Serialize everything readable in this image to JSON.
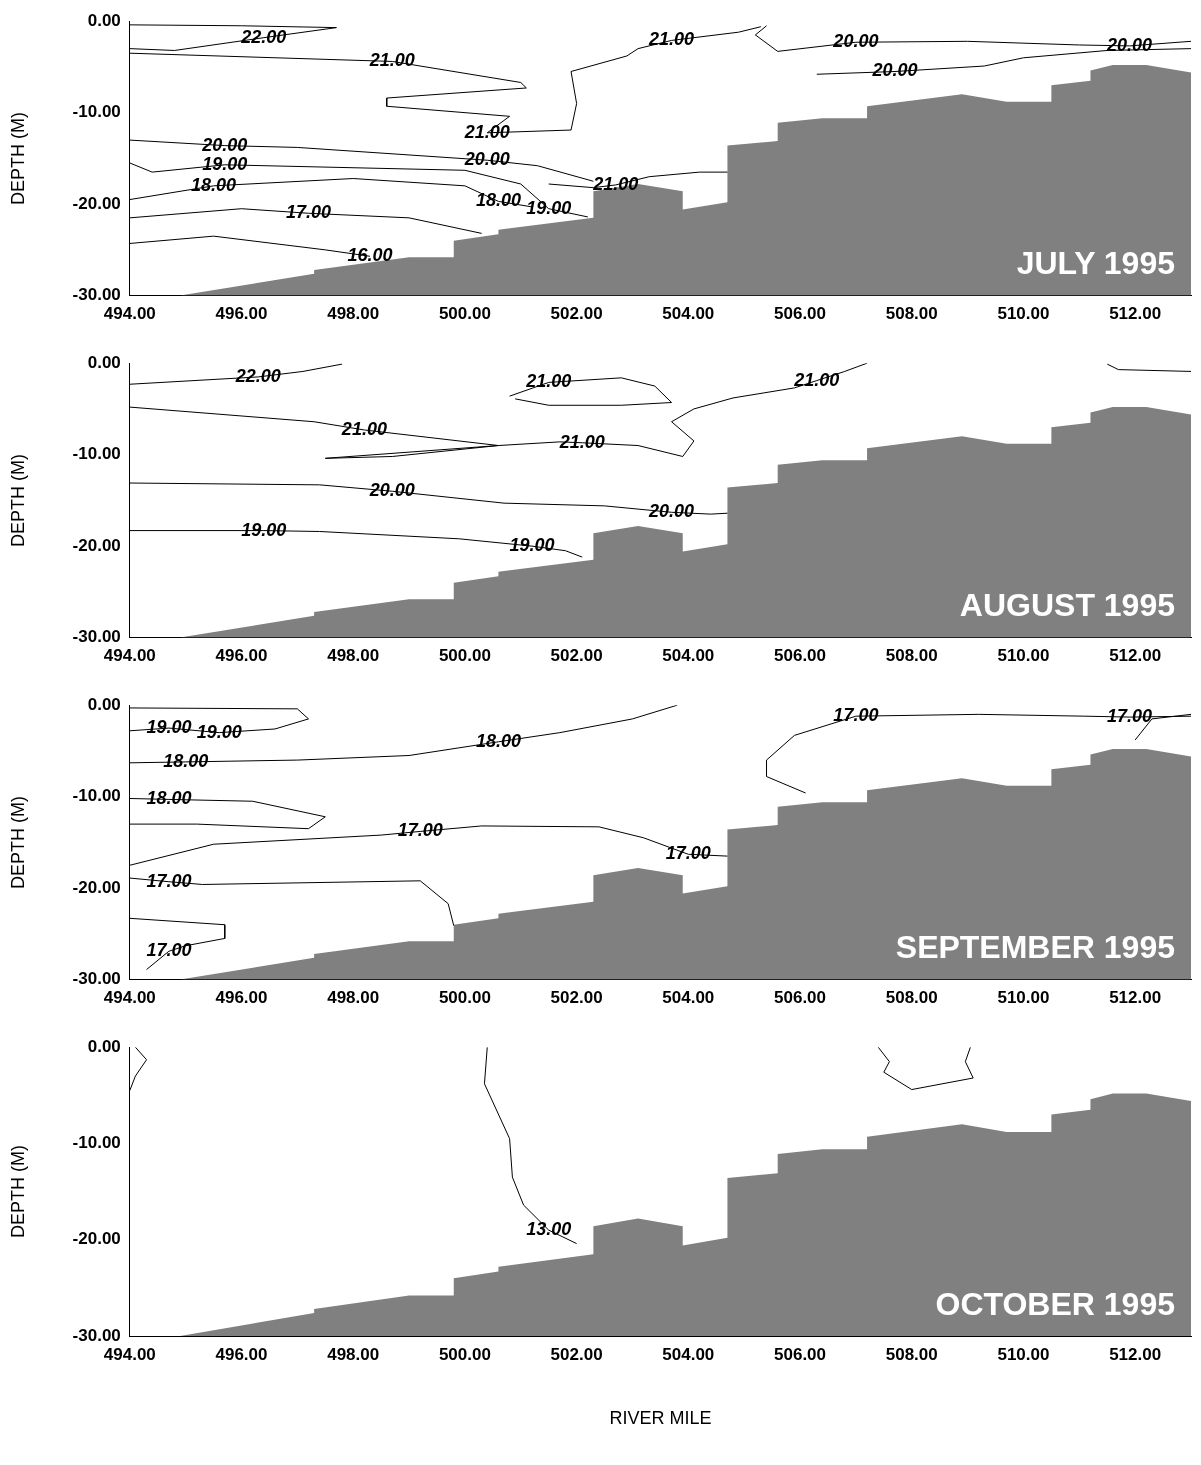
{
  "chart_data": [
    {
      "type": "line",
      "ylabel": "DEPTH (M)",
      "xlim": [
        494,
        513
      ],
      "ylim": [
        -30,
        0
      ],
      "xticks": [
        {
          "value": 494,
          "label": "494.00"
        },
        {
          "value": 496,
          "label": "496.00"
        },
        {
          "value": 498,
          "label": "498.00"
        },
        {
          "value": 500,
          "label": "500.00"
        },
        {
          "value": 502,
          "label": "502.00"
        },
        {
          "value": 504,
          "label": "504.00"
        },
        {
          "value": 506,
          "label": "506.00"
        },
        {
          "value": 508,
          "label": "508.00"
        },
        {
          "value": 510,
          "label": "510.00"
        },
        {
          "value": 512,
          "label": "512.00"
        }
      ],
      "yticks": [
        {
          "value": -30,
          "label": "-30.00"
        },
        {
          "value": -20,
          "label": "-20.00"
        },
        {
          "value": -10,
          "label": "-10.00"
        },
        {
          "value": 0,
          "label": "0.00"
        }
      ],
      "series": [
        {
          "type": "line",
          "color": "#000000",
          "x": [
            494,
            496,
            497.7,
            496.4,
            494.8,
            494
          ],
          "values": [
            -0.4,
            -0.5,
            -0.7,
            -1.8,
            -3.2,
            -3.0
          ]
        },
        {
          "type": "line",
          "color": "#000000",
          "x": [
            494,
            498.7,
            501,
            501.1,
            498.6,
            498.6,
            500.8,
            500.4,
            501.9,
            502,
            501.9,
            502.9,
            503.1,
            503.7,
            504.9,
            505.3
          ],
          "values": [
            -3.5,
            -4.4,
            -6.7,
            -7.3,
            -8.4,
            -9.3,
            -10.4,
            -12.2,
            -11.9,
            -9,
            -5.5,
            -3.8,
            -3.0,
            -2.1,
            -1.2,
            -0.6
          ]
        },
        {
          "type": "line",
          "color": "#000000",
          "x": [
            505.4,
            505.2,
            505.6,
            507,
            509,
            511,
            511.9,
            513
          ],
          "values": [
            -0.5,
            -1.5,
            -3.3,
            -2.3,
            -2.2,
            -2.6,
            -2.7,
            -2.2
          ]
        },
        {
          "type": "line",
          "color": "#000000",
          "x": [
            506.3,
            507.7,
            509.3,
            510,
            511.5,
            513
          ],
          "values": [
            -5.8,
            -5.5,
            -4.9,
            -4.0,
            -3.2,
            -3.0
          ]
        },
        {
          "type": "line",
          "color": "#000000",
          "x": [
            494,
            495.7,
            497,
            500.4,
            501.3,
            502.3
          ],
          "values": [
            -13,
            -13.6,
            -13.8,
            -15.2,
            -15.8,
            -17.5
          ]
        },
        {
          "type": "line",
          "color": "#000000",
          "x": [
            494,
            494.4,
            495.7,
            500,
            501,
            501.5,
            502.2
          ],
          "values": [
            -15.5,
            -16.5,
            -15.7,
            -16.3,
            -17.8,
            -20.5,
            -21.4
          ]
        },
        {
          "type": "line",
          "color": "#000000",
          "x": [
            494,
            495.5,
            498,
            500,
            500.6,
            501.2
          ],
          "values": [
            -19.5,
            -18,
            -17.2,
            -18.0,
            -19.7,
            -20.3
          ]
        },
        {
          "type": "line",
          "color": "#000000",
          "x": [
            494,
            496,
            497.2,
            499,
            500.3
          ],
          "values": [
            -21.5,
            -20.5,
            -21.0,
            -21.5,
            -23.2
          ]
        },
        {
          "type": "line",
          "color": "#000000",
          "x": [
            494,
            495.5,
            497.5,
            498.3
          ],
          "values": [
            -24.3,
            -23.5,
            -25,
            -25.7
          ]
        },
        {
          "type": "line",
          "color": "#000000",
          "x": [
            501.5,
            502.3,
            502.7,
            503.3,
            504.2,
            504.7
          ],
          "values": [
            -17.8,
            -18.2,
            -17.9,
            -17,
            -16.5,
            -16.5
          ]
        },
        {
          "type": "area",
          "color": "#808080",
          "x": [
            494.9,
            497.3,
            497.3,
            499,
            499.8,
            499.8,
            500.6,
            500.6,
            502.3,
            502.3,
            503.1,
            503.9,
            503.9,
            504.7,
            504.7,
            505.6,
            505.6,
            506.4,
            507.2,
            507.2,
            508.9,
            509.7,
            510.5,
            510.5,
            511.2,
            511.2,
            511.6,
            512.2,
            513,
            513
          ],
          "values": [
            -30,
            -27.6,
            -27.2,
            -25.8,
            -25.8,
            -24,
            -23.3,
            -22.8,
            -21.5,
            -18.6,
            -17.8,
            -18.6,
            -20.6,
            -19.8,
            -13.6,
            -13.1,
            -11.1,
            -10.6,
            -10.6,
            -9.3,
            -8.0,
            -8.8,
            -8.8,
            -7.0,
            -6.5,
            -5.4,
            -4.8,
            -4.8,
            -5.6,
            -30
          ]
        }
      ],
      "annotations": [
        "JULY 1995",
        {
          "text": "22.00",
          "x": 496.4,
          "y": -1.8
        },
        {
          "text": "21.00",
          "x": 498.7,
          "y": -4.4
        },
        {
          "text": "21.00",
          "x": 500.4,
          "y": -12.2
        },
        {
          "text": "21.00",
          "x": 503.7,
          "y": -2.1
        },
        {
          "text": "20.00",
          "x": 507,
          "y": -2.3
        },
        {
          "text": "20.00",
          "x": 507.7,
          "y": -5.5
        },
        {
          "text": "20.00",
          "x": 511.9,
          "y": -2.7
        },
        {
          "text": "20.00",
          "x": 495.7,
          "y": -13.6
        },
        {
          "text": "19.00",
          "x": 495.7,
          "y": -15.7
        },
        {
          "text": "18.00",
          "x": 495.5,
          "y": -18
        },
        {
          "text": "17.00",
          "x": 497.2,
          "y": -21.0
        },
        {
          "text": "16.00",
          "x": 498.3,
          "y": -25.7
        },
        {
          "text": "20.00",
          "x": 500.4,
          "y": -15.2
        },
        {
          "text": "18.00",
          "x": 500.6,
          "y": -19.7
        },
        {
          "text": "19.00",
          "x": 501.5,
          "y": -20.5
        },
        {
          "text": "21.00",
          "x": 502.7,
          "y": -17.9
        }
      ]
    },
    {
      "type": "line",
      "ylabel": "DEPTH (M)",
      "xlim": [
        494,
        513
      ],
      "ylim": [
        -30,
        0
      ],
      "xticks": [
        {
          "value": 494,
          "label": "494.00"
        },
        {
          "value": 496,
          "label": "496.00"
        },
        {
          "value": 498,
          "label": "498.00"
        },
        {
          "value": 500,
          "label": "500.00"
        },
        {
          "value": 502,
          "label": "502.00"
        },
        {
          "value": 504,
          "label": "504.00"
        },
        {
          "value": 506,
          "label": "506.00"
        },
        {
          "value": 508,
          "label": "508.00"
        },
        {
          "value": 510,
          "label": "510.00"
        },
        {
          "value": 512,
          "label": "512.00"
        }
      ],
      "yticks": [
        {
          "value": -30,
          "label": "-30.00"
        },
        {
          "value": -20,
          "label": "-20.00"
        },
        {
          "value": -10,
          "label": "-10.00"
        },
        {
          "value": 0,
          "label": "0.00"
        }
      ],
      "series": [
        {
          "type": "line",
          "color": "#000000",
          "x": [
            494,
            496.3,
            497.1,
            497.8
          ],
          "values": [
            -2.3,
            -1.5,
            -0.9,
            -0.1
          ]
        },
        {
          "type": "line",
          "color": "#000000",
          "x": [
            500.8,
            501.5,
            502.8,
            503.4,
            503.7,
            502.8,
            501.5,
            500.9
          ],
          "values": [
            -3.6,
            -2.1,
            -1.6,
            -2.5,
            -4.3,
            -4.6,
            -4.6,
            -3.9
          ]
        },
        {
          "type": "line",
          "color": "#000000",
          "x": [
            494,
            497.3,
            498.2,
            500.6,
            498.7,
            497.5,
            500.6,
            501.7,
            502.1,
            503.1,
            503.9,
            504.1,
            503.7,
            504.1,
            504.8,
            505.9,
            506.3,
            506.8,
            507.2
          ],
          "values": [
            -4.8,
            -6.4,
            -7.3,
            -9.0,
            -10.2,
            -10.4,
            -9.0,
            -8.6,
            -8.7,
            -9.0,
            -10.2,
            -8.5,
            -6.4,
            -5.0,
            -3.8,
            -2.7,
            -1.9,
            -0.9,
            0
          ]
        },
        {
          "type": "line",
          "color": "#000000",
          "x": [
            511.5,
            511.7,
            513
          ],
          "values": [
            -0.1,
            -0.7,
            -0.9
          ]
        },
        {
          "type": "line",
          "color": "#000000",
          "x": [
            494,
            497.4,
            498.7,
            500.7,
            502.5,
            503.7,
            504.4,
            504.7
          ],
          "values": [
            -13.1,
            -13.3,
            -14.0,
            -15.3,
            -15.6,
            -16.3,
            -16.5,
            -16.4
          ]
        },
        {
          "type": "line",
          "color": "#000000",
          "x": [
            494,
            496.4,
            497.4,
            499.9,
            501.2,
            501.8,
            502.1
          ],
          "values": [
            -18.3,
            -18.3,
            -18.4,
            -19.2,
            -20.0,
            -20.5,
            -21.2
          ]
        },
        {
          "type": "area",
          "color": "#808080",
          "x": [
            494.9,
            497.3,
            497.3,
            499,
            499.8,
            499.8,
            500.6,
            500.6,
            502.3,
            502.3,
            503.1,
            503.9,
            503.9,
            504.7,
            504.7,
            505.6,
            505.6,
            506.4,
            507.2,
            507.2,
            508.9,
            509.7,
            510.5,
            510.5,
            511.2,
            511.2,
            511.6,
            512.2,
            513,
            513
          ],
          "values": [
            -30,
            -27.6,
            -27.2,
            -25.8,
            -25.8,
            -24,
            -23.3,
            -22.8,
            -21.5,
            -18.6,
            -17.8,
            -18.6,
            -20.6,
            -19.8,
            -13.6,
            -13.1,
            -11.1,
            -10.6,
            -10.6,
            -9.3,
            -8.0,
            -8.8,
            -8.8,
            -7.0,
            -6.5,
            -5.4,
            -4.8,
            -4.8,
            -5.6,
            -30
          ]
        }
      ],
      "annotations": [
        "AUGUST 1995",
        {
          "text": "22.00",
          "x": 496.3,
          "y": -1.5
        },
        {
          "text": "21.00",
          "x": 501.5,
          "y": -2.1
        },
        {
          "text": "21.00",
          "x": 506.3,
          "y": -1.9
        },
        {
          "text": "21.00",
          "x": 498.2,
          "y": -7.3
        },
        {
          "text": "21.00",
          "x": 502.1,
          "y": -8.7
        },
        {
          "text": "20.00",
          "x": 498.7,
          "y": -14.0
        },
        {
          "text": "20.00",
          "x": 503.7,
          "y": -16.3
        },
        {
          "text": "19.00",
          "x": 496.4,
          "y": -18.3
        },
        {
          "text": "19.00",
          "x": 501.2,
          "y": -20.0
        }
      ]
    },
    {
      "type": "line",
      "ylabel": "DEPTH (M)",
      "xlim": [
        494,
        513
      ],
      "ylim": [
        -30,
        0
      ],
      "xticks": [
        {
          "value": 494,
          "label": "494.00"
        },
        {
          "value": 496,
          "label": "496.00"
        },
        {
          "value": 498,
          "label": "498.00"
        },
        {
          "value": 500,
          "label": "500.00"
        },
        {
          "value": 502,
          "label": "502.00"
        },
        {
          "value": 504,
          "label": "504.00"
        },
        {
          "value": 506,
          "label": "506.00"
        },
        {
          "value": 508,
          "label": "508.00"
        },
        {
          "value": 510,
          "label": "510.00"
        },
        {
          "value": 512,
          "label": "512.00"
        }
      ],
      "yticks": [
        {
          "value": -30,
          "label": "-30.00"
        },
        {
          "value": -20,
          "label": "-20.00"
        },
        {
          "value": -10,
          "label": "-10.00"
        },
        {
          "value": 0,
          "label": "0.00"
        }
      ],
      "series": [
        {
          "type": "line",
          "color": "#000000",
          "x": [
            494,
            497,
            497.2,
            496.6,
            495.6,
            494.7,
            494
          ],
          "values": [
            -0.3,
            -0.4,
            -1.5,
            -2.6,
            -3.0,
            -2.5,
            -2.8
          ]
        },
        {
          "type": "line",
          "color": "#000000",
          "x": [
            494,
            495,
            497,
            499,
            500.6,
            501.7,
            503,
            503.8
          ],
          "values": [
            -6.3,
            -6.2,
            -6.0,
            -5.5,
            -4.0,
            -3.0,
            -1.5,
            0
          ]
        },
        {
          "type": "line",
          "color": "#000000",
          "x": [
            494,
            494.7,
            496.2,
            497.5,
            497.2,
            495.2,
            494
          ],
          "values": [
            -10.2,
            -10.3,
            -10.5,
            -12.2,
            -13.5,
            -13.0,
            -13.0
          ]
        },
        {
          "type": "line",
          "color": "#000000",
          "x": [
            494,
            495.5,
            498.5,
            499.2,
            500.3,
            502.4,
            503.2,
            504,
            504.7
          ],
          "values": [
            -17.5,
            -15.2,
            -14.2,
            -13.8,
            -13.2,
            -13.3,
            -14.5,
            -16.3,
            -16.5
          ]
        },
        {
          "type": "line",
          "color": "#000000",
          "x": [
            506.1,
            505.4,
            505.4,
            505.9,
            507,
            509.2,
            511.1,
            511.9,
            513
          ],
          "values": [
            -9.6,
            -7.8,
            -6,
            -3.3,
            -1.2,
            -1.0,
            -1.2,
            -1.3,
            -1.2
          ]
        },
        {
          "type": "line",
          "color": "#000000",
          "x": [
            512,
            512.3,
            513
          ],
          "values": [
            -3.8,
            -1.5,
            -1.0
          ]
        },
        {
          "type": "line",
          "color": "#000000",
          "x": [
            494,
            494.7,
            495.3,
            499.2,
            499.7,
            499.8
          ],
          "values": [
            -18.9,
            -19.3,
            -19.6,
            -19.2,
            -21.7,
            -24.1
          ]
        },
        {
          "type": "line",
          "color": "#000000",
          "x": [
            494,
            495.7,
            495.7,
            495,
            494.7,
            494.3
          ],
          "values": [
            -23.3,
            -24,
            -25.5,
            -26.3,
            -26.9,
            -28.9
          ]
        },
        {
          "type": "area",
          "color": "#808080",
          "x": [
            494.9,
            497.3,
            497.3,
            499,
            499.8,
            499.8,
            500.6,
            500.6,
            502.3,
            502.3,
            503.1,
            503.9,
            503.9,
            504.7,
            504.7,
            505.6,
            505.6,
            506.4,
            507.2,
            507.2,
            508.9,
            509.7,
            510.5,
            510.5,
            511.2,
            511.2,
            511.6,
            512.2,
            513,
            513
          ],
          "values": [
            -30,
            -27.6,
            -27.2,
            -25.8,
            -25.8,
            -24,
            -23.3,
            -22.8,
            -21.5,
            -18.6,
            -17.8,
            -18.6,
            -20.6,
            -19.8,
            -13.6,
            -13.1,
            -11.1,
            -10.6,
            -10.6,
            -9.3,
            -8.0,
            -8.8,
            -8.8,
            -7.0,
            -6.5,
            -5.4,
            -4.8,
            -4.8,
            -5.6,
            -30
          ]
        }
      ],
      "annotations": [
        "SEPTEMBER 1995",
        {
          "text": "19.00",
          "x": 494.7,
          "y": -2.5
        },
        {
          "text": "19.00",
          "x": 495.6,
          "y": -3.0
        },
        {
          "text": "18.00",
          "x": 495,
          "y": -6.2
        },
        {
          "text": "18.00",
          "x": 500.6,
          "y": -4.0
        },
        {
          "text": "18.00",
          "x": 494.7,
          "y": -10.3
        },
        {
          "text": "17.00",
          "x": 499.2,
          "y": -13.8
        },
        {
          "text": "17.00",
          "x": 504,
          "y": -16.3
        },
        {
          "text": "17.00",
          "x": 507,
          "y": -1.2
        },
        {
          "text": "17.00",
          "x": 511.9,
          "y": -1.3
        },
        {
          "text": "17.00",
          "x": 494.7,
          "y": -19.3
        },
        {
          "text": "17.00",
          "x": 494.7,
          "y": -26.9
        }
      ]
    },
    {
      "type": "line",
      "xlabel": "RIVER MILE",
      "ylabel": "DEPTH (M)",
      "xlim": [
        494,
        513
      ],
      "ylim": [
        -30,
        0
      ],
      "xticks": [
        {
          "value": 494,
          "label": "494.00"
        },
        {
          "value": 496,
          "label": "496.00"
        },
        {
          "value": 498,
          "label": "498.00"
        },
        {
          "value": 500,
          "label": "500.00"
        },
        {
          "value": 502,
          "label": "502.00"
        },
        {
          "value": 504,
          "label": "504.00"
        },
        {
          "value": 506,
          "label": "506.00"
        },
        {
          "value": 508,
          "label": "508.00"
        },
        {
          "value": 510,
          "label": "510.00"
        },
        {
          "value": 512,
          "label": "512.00"
        }
      ],
      "yticks": [
        {
          "value": -30,
          "label": "-30.00"
        },
        {
          "value": -20,
          "label": "-20.00"
        },
        {
          "value": -10,
          "label": "-10.00"
        },
        {
          "value": 0,
          "label": "0.00"
        }
      ],
      "series": [
        {
          "type": "line",
          "color": "#000000",
          "x": [
            494.1,
            494.3,
            494.1,
            494
          ],
          "values": [
            0,
            -1.3,
            -3.0,
            -4.5
          ]
        },
        {
          "type": "line",
          "color": "#000000",
          "x": [
            500.4,
            500.35,
            500.8,
            500.85,
            501.05,
            501.5,
            502.0
          ],
          "values": [
            0,
            -3.8,
            -9.5,
            -13.5,
            -16.4,
            -19.0,
            -20.4
          ]
        },
        {
          "type": "line",
          "color": "#000000",
          "x": [
            507.4,
            507.6,
            507.5,
            508.0,
            509.1,
            508.96,
            509.05
          ],
          "values": [
            0,
            -1.5,
            -2.6,
            -4.4,
            -3.2,
            -1.5,
            0
          ]
        },
        {
          "type": "area",
          "color": "#808080",
          "x": [
            494.9,
            497.3,
            497.3,
            499,
            499.8,
            499.8,
            500.6,
            500.6,
            502.3,
            502.3,
            503.1,
            503.9,
            503.9,
            504.7,
            504.7,
            505.6,
            505.6,
            506.4,
            507.2,
            507.2,
            508.9,
            509.7,
            510.5,
            510.5,
            511.2,
            511.2,
            511.6,
            512.2,
            513,
            513
          ],
          "values": [
            -30,
            -27.6,
            -27.2,
            -25.8,
            -25.8,
            -24,
            -23.3,
            -22.8,
            -21.5,
            -18.6,
            -17.8,
            -18.6,
            -20.6,
            -19.8,
            -13.6,
            -13.1,
            -11.1,
            -10.6,
            -10.6,
            -9.3,
            -8.0,
            -8.8,
            -8.8,
            -7.0,
            -6.5,
            -5.4,
            -4.8,
            -4.8,
            -5.6,
            -30
          ]
        }
      ],
      "annotations": [
        "OCTOBER 1995",
        {
          "text": "13.00",
          "x": 501.5,
          "y": -19.0
        }
      ]
    }
  ]
}
